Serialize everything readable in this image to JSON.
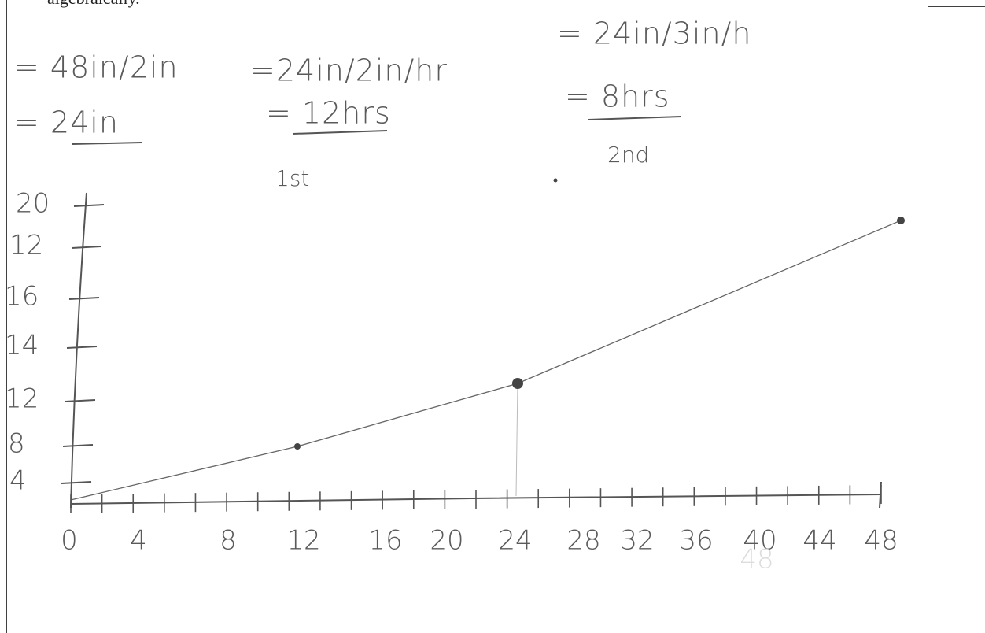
{
  "header": {
    "text": "algebraically."
  },
  "work": [
    {
      "lines": [
        "= 48in/2in",
        "= 24in"
      ]
    },
    {
      "lines": [
        "=24in/2in/hr",
        "= 12hrs",
        "1st"
      ]
    },
    {
      "lines": [
        "= 24in/3in/h",
        "= 8hrs",
        "2nd"
      ]
    }
  ],
  "graph": {
    "y_labels": [
      "20",
      "12",
      "16",
      "14",
      "12",
      "8",
      "4"
    ],
    "x_labels": [
      "0",
      "4",
      "8",
      "12",
      "16",
      "20",
      "24",
      "28",
      "32",
      "36",
      "40",
      "44",
      "48"
    ],
    "faded_label": "48"
  }
}
